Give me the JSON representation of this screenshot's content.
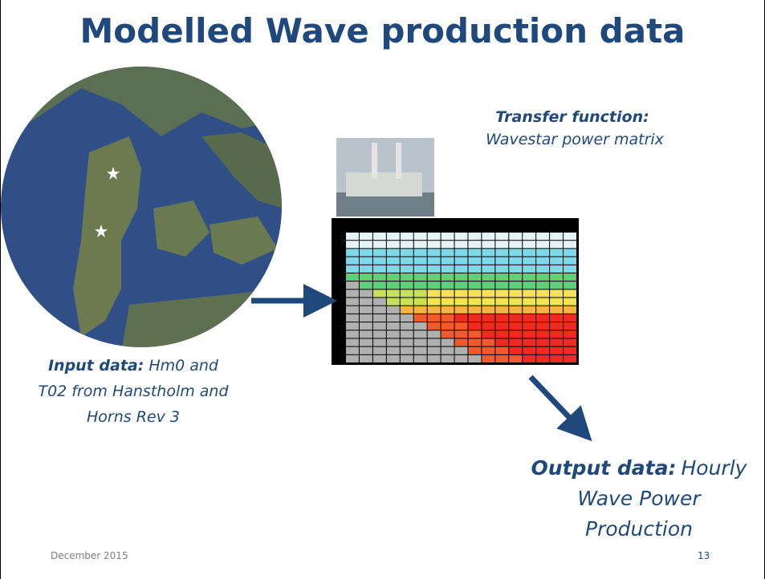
{
  "title": "Modelled Wave production data",
  "transfer_function": {
    "label": "Transfer function:",
    "text": "Wavestar power matrix"
  },
  "input": {
    "label": "Input data:",
    "lines": [
      "Hm0 and",
      "T02 from Hanstholm and",
      "Horns Rev 3"
    ]
  },
  "output": {
    "label": "Output data:",
    "lines": [
      "Hourly",
      "Wave Power",
      "Production"
    ]
  },
  "footer": {
    "date": "December 2015",
    "page": "13"
  }
}
